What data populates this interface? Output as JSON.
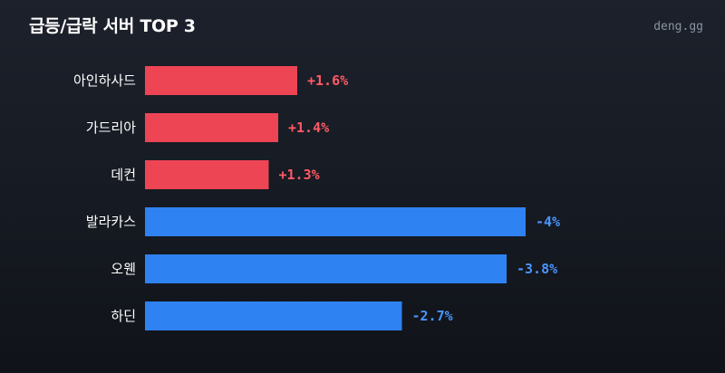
{
  "header": {
    "title": "급등/급락 서버 TOP 3",
    "brand": "deng.gg"
  },
  "colors": {
    "positive": "#ee4555",
    "negative": "#2f82f2",
    "positive_text": "#ff5a66",
    "negative_text": "#4a95ff",
    "label": "#ffffff"
  },
  "chart_data": {
    "type": "bar",
    "orientation": "horizontal",
    "title": "급등/급락 서버 TOP 3",
    "categories": [
      "아인하사드",
      "가드리아",
      "데컨",
      "발라카스",
      "오웬",
      "하딘"
    ],
    "values": [
      1.6,
      1.4,
      1.3,
      -4,
      -3.8,
      -2.7
    ],
    "value_labels": [
      "+1.6%",
      "+1.4%",
      "+1.3%",
      "-4%",
      "-3.8%",
      "-2.7%"
    ],
    "unit": "%",
    "grid": false,
    "legend": "none"
  }
}
